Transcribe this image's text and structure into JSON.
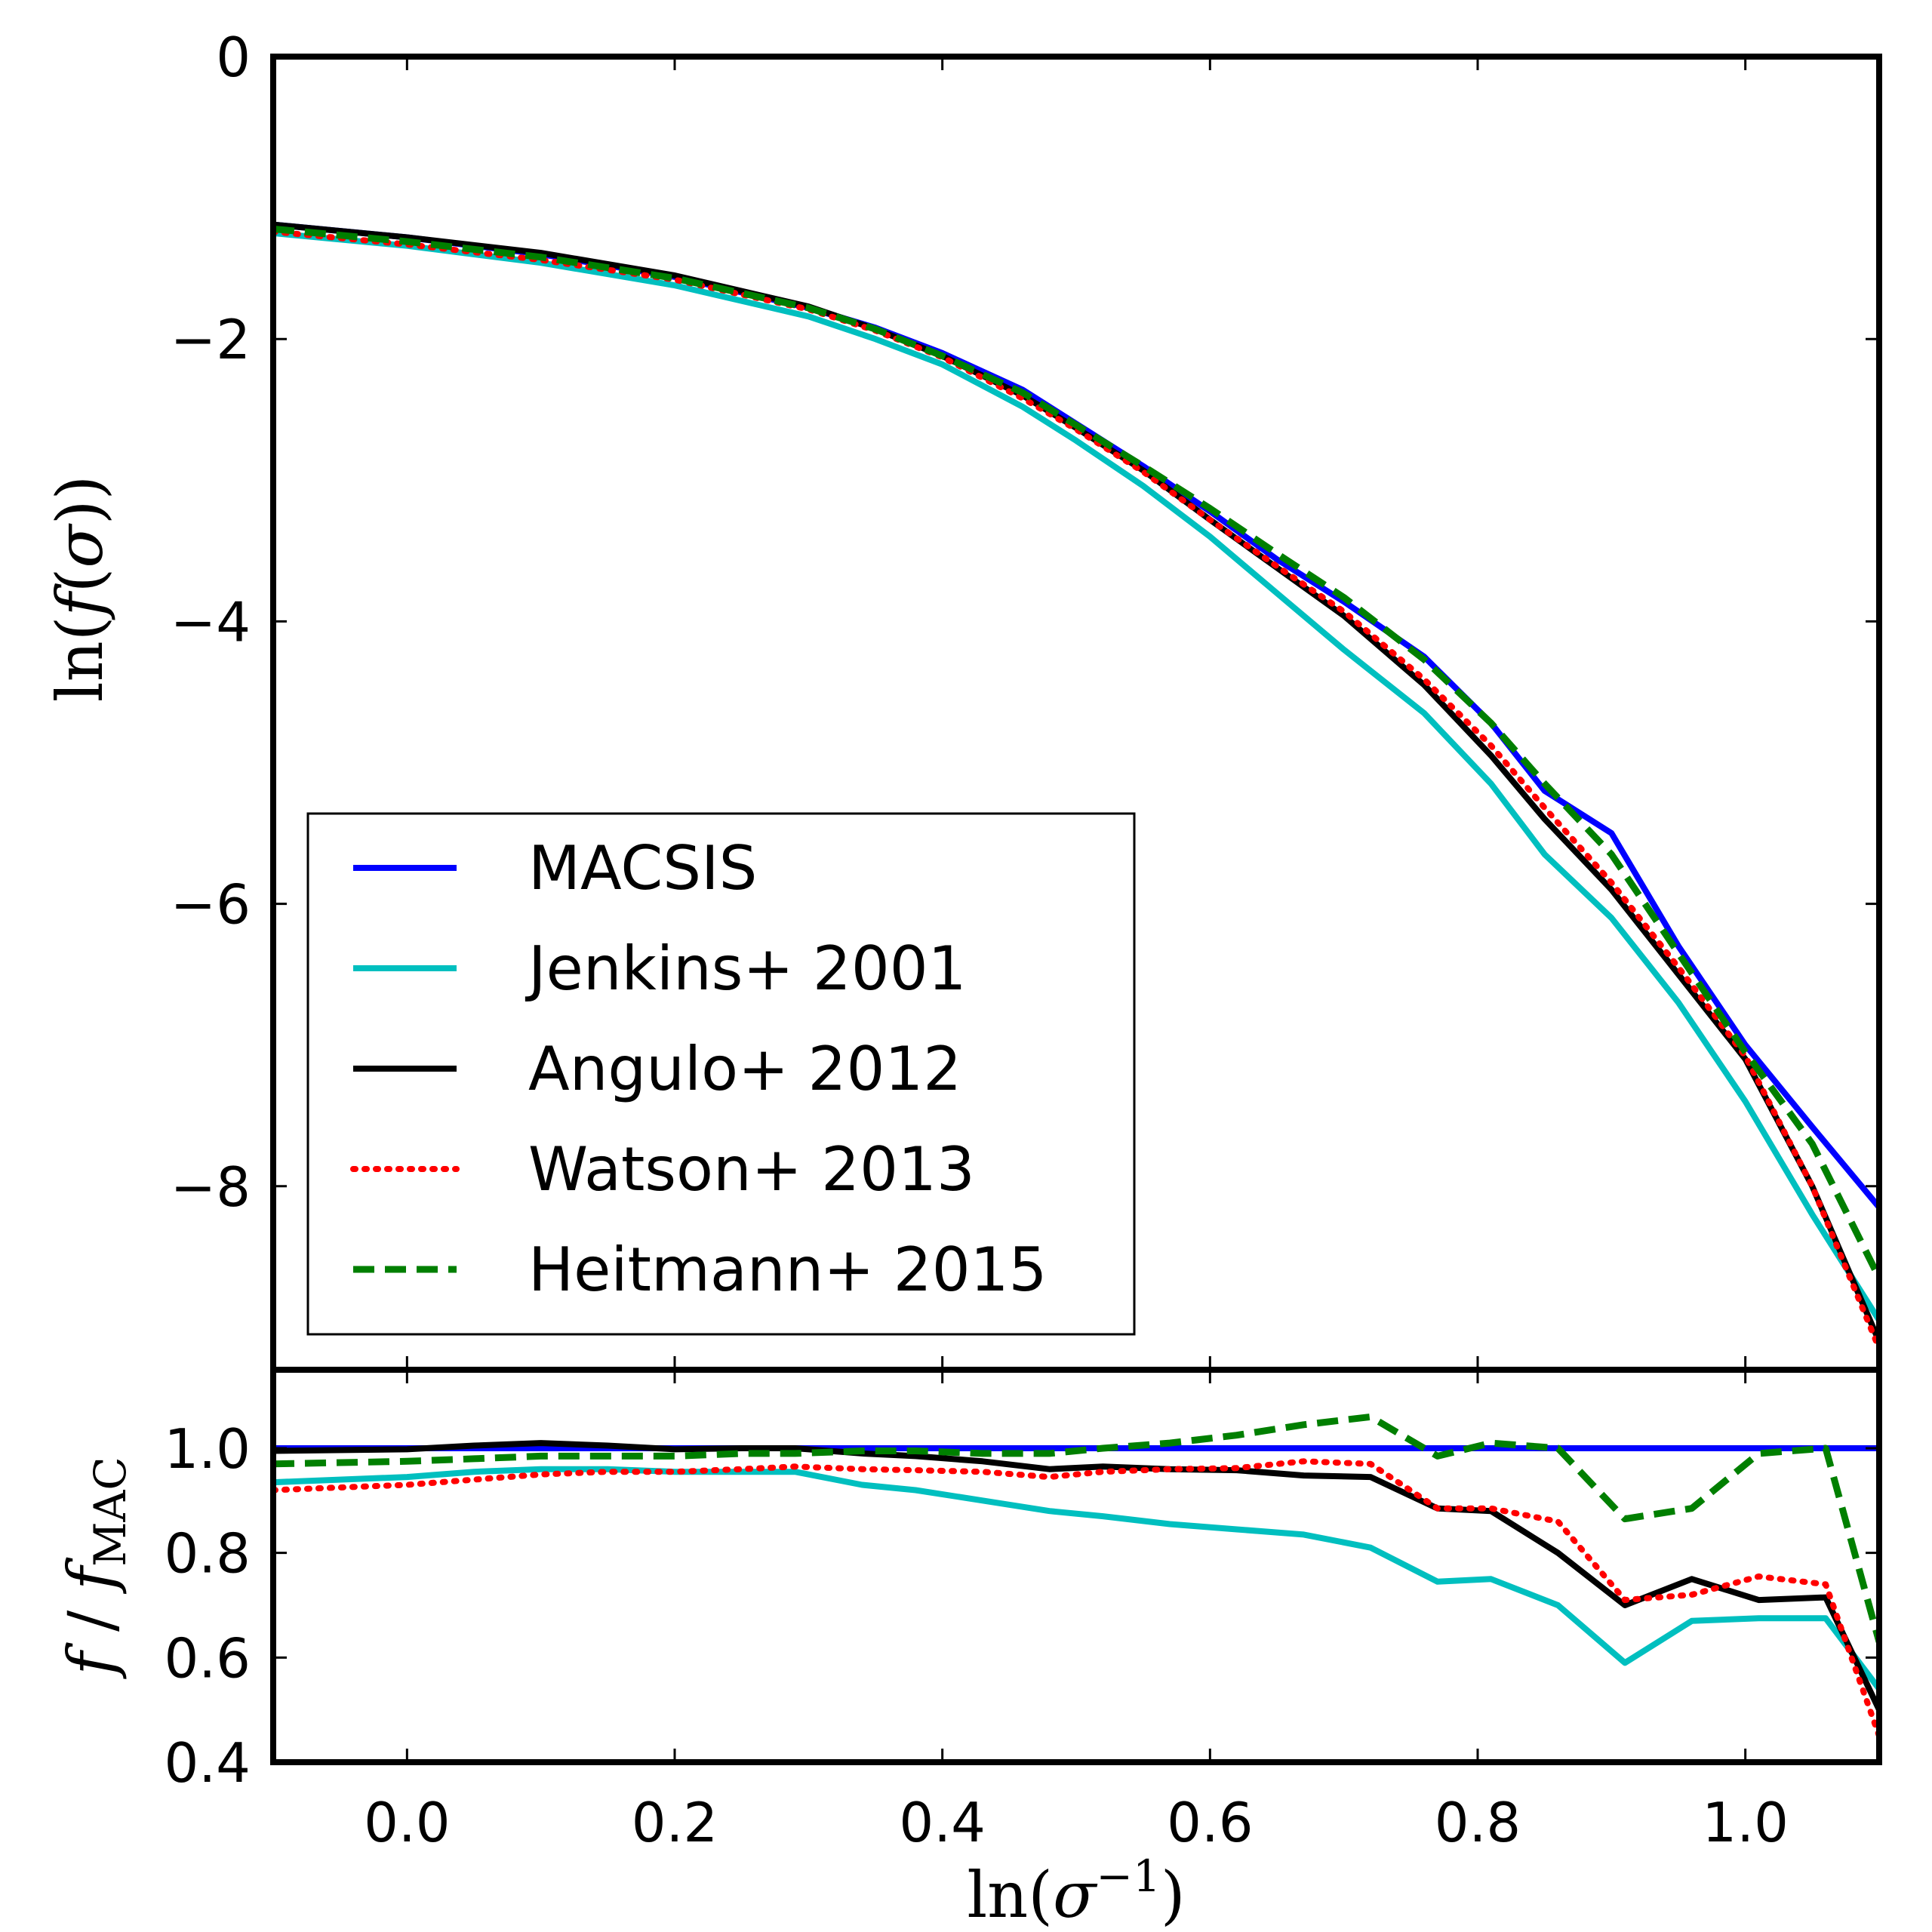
{
  "chart_data": [
    {
      "type": "line",
      "panel": "top",
      "xlabel": "",
      "ylabel": "ln(f(σ))",
      "xlim": [
        -0.1,
        1.1
      ],
      "ylim": [
        -9.3,
        0
      ],
      "yticks": [
        0,
        -2,
        -4,
        -6,
        -8
      ],
      "ytick_labels": [
        "0",
        "−2",
        "−4",
        "−6",
        "−8"
      ],
      "legend_position": "lower-left",
      "series": [
        {
          "name": "MACSIS",
          "color": "#0000ff",
          "style": "solid",
          "x": [
            -0.1,
            0.0,
            0.1,
            0.2,
            0.3,
            0.35,
            0.4,
            0.46,
            0.5,
            0.55,
            0.6,
            0.65,
            0.7,
            0.76,
            0.81,
            0.85,
            0.9,
            0.95,
            1.0,
            1.05,
            1.1
          ],
          "y": [
            -1.19,
            -1.28,
            -1.4,
            -1.56,
            -1.78,
            -1.92,
            -2.1,
            -2.36,
            -2.6,
            -2.9,
            -3.22,
            -3.56,
            -3.86,
            -4.25,
            -4.72,
            -5.2,
            -5.5,
            -6.3,
            -7.0,
            -7.58,
            -8.15
          ]
        },
        {
          "name": "Jenkins+ 2001",
          "color": "#00bfbf",
          "style": "solid",
          "x": [
            -0.1,
            0.0,
            0.1,
            0.2,
            0.3,
            0.35,
            0.4,
            0.46,
            0.5,
            0.55,
            0.6,
            0.65,
            0.7,
            0.76,
            0.81,
            0.85,
            0.9,
            0.95,
            1.0,
            1.05,
            1.1
          ],
          "y": [
            -1.25,
            -1.34,
            -1.46,
            -1.62,
            -1.84,
            -2.0,
            -2.18,
            -2.48,
            -2.72,
            -3.04,
            -3.4,
            -3.8,
            -4.2,
            -4.65,
            -5.15,
            -5.65,
            -6.1,
            -6.7,
            -7.4,
            -8.2,
            -8.95
          ]
        },
        {
          "name": "Angulo+ 2012",
          "color": "#000000",
          "style": "solid",
          "x": [
            -0.1,
            0.0,
            0.1,
            0.2,
            0.3,
            0.35,
            0.4,
            0.46,
            0.5,
            0.55,
            0.6,
            0.65,
            0.7,
            0.76,
            0.81,
            0.85,
            0.9,
            0.95,
            1.0,
            1.05,
            1.1
          ],
          "y": [
            -1.19,
            -1.28,
            -1.39,
            -1.55,
            -1.77,
            -1.93,
            -2.12,
            -2.4,
            -2.63,
            -2.93,
            -3.28,
            -3.62,
            -3.96,
            -4.45,
            -4.95,
            -5.4,
            -5.9,
            -6.5,
            -7.1,
            -8.0,
            -9.1
          ]
        },
        {
          "name": "Watson+ 2013",
          "color": "#ff0000",
          "style": "dotted",
          "x": [
            -0.1,
            0.0,
            0.1,
            0.2,
            0.3,
            0.35,
            0.4,
            0.46,
            0.5,
            0.55,
            0.6,
            0.65,
            0.7,
            0.76,
            0.81,
            0.85,
            0.9,
            0.95,
            1.0,
            1.05,
            1.1
          ],
          "y": [
            -1.24,
            -1.33,
            -1.44,
            -1.58,
            -1.79,
            -1.94,
            -2.13,
            -2.42,
            -2.64,
            -2.94,
            -3.28,
            -3.61,
            -3.93,
            -4.41,
            -4.88,
            -5.32,
            -5.85,
            -6.45,
            -7.08,
            -8.0,
            -9.15
          ]
        },
        {
          "name": "Heitmann+ 2015",
          "color": "#007f00",
          "style": "dashed",
          "x": [
            -0.1,
            0.0,
            0.1,
            0.2,
            0.3,
            0.35,
            0.4,
            0.46,
            0.5,
            0.55,
            0.6,
            0.65,
            0.7,
            0.76,
            0.81,
            0.85,
            0.9,
            0.95,
            1.0,
            1.05,
            1.1
          ],
          "y": [
            -1.22,
            -1.31,
            -1.42,
            -1.57,
            -1.78,
            -1.93,
            -2.12,
            -2.38,
            -2.61,
            -2.9,
            -3.2,
            -3.52,
            -3.83,
            -4.27,
            -4.72,
            -5.15,
            -5.65,
            -6.35,
            -7.05,
            -7.7,
            -8.65
          ]
        }
      ]
    },
    {
      "type": "line",
      "panel": "bottom",
      "xlabel": "ln(σ⁻¹)",
      "ylabel": "f / f_MAC",
      "xlim": [
        -0.1,
        1.1
      ],
      "ylim": [
        0.4,
        1.15
      ],
      "xticks": [
        0.0,
        0.2,
        0.4,
        0.6,
        0.8,
        1.0
      ],
      "xtick_labels": [
        "0.0",
        "0.2",
        "0.4",
        "0.6",
        "0.8",
        "1.0"
      ],
      "yticks": [
        0.4,
        0.6,
        0.8,
        1.0
      ],
      "ytick_labels": [
        "0.4",
        "0.6",
        "0.8",
        "1.0"
      ],
      "series": [
        {
          "name": "MACSIS",
          "color": "#0000ff",
          "style": "solid",
          "x": [
            -0.1,
            1.1
          ],
          "y": [
            1.0,
            1.0
          ]
        },
        {
          "name": "Jenkins+ 2001",
          "color": "#00bfbf",
          "style": "solid",
          "x": [
            -0.1,
            0.0,
            0.05,
            0.1,
            0.15,
            0.2,
            0.25,
            0.29,
            0.34,
            0.38,
            0.43,
            0.48,
            0.52,
            0.57,
            0.62,
            0.67,
            0.72,
            0.77,
            0.81,
            0.86,
            0.91,
            0.96,
            1.01,
            1.06,
            1.1
          ],
          "y": [
            0.935,
            0.945,
            0.955,
            0.96,
            0.96,
            0.955,
            0.955,
            0.955,
            0.93,
            0.92,
            0.9,
            0.88,
            0.87,
            0.855,
            0.845,
            0.835,
            0.81,
            0.745,
            0.75,
            0.7,
            0.59,
            0.67,
            0.675,
            0.675,
            0.54
          ]
        },
        {
          "name": "Angulo+ 2012",
          "color": "#000000",
          "style": "solid",
          "x": [
            -0.1,
            0.0,
            0.05,
            0.1,
            0.15,
            0.2,
            0.25,
            0.29,
            0.34,
            0.38,
            0.43,
            0.48,
            0.52,
            0.57,
            0.62,
            0.67,
            0.72,
            0.77,
            0.81,
            0.86,
            0.91,
            0.96,
            1.01,
            1.06,
            1.1
          ],
          "y": [
            0.995,
            0.998,
            1.005,
            1.01,
            1.005,
            0.998,
            1.0,
            1.0,
            0.99,
            0.985,
            0.975,
            0.96,
            0.965,
            0.96,
            0.958,
            0.948,
            0.945,
            0.885,
            0.88,
            0.8,
            0.7,
            0.75,
            0.71,
            0.715,
            0.5
          ]
        },
        {
          "name": "Watson+ 2013",
          "color": "#ff0000",
          "style": "dotted",
          "x": [
            -0.1,
            0.0,
            0.05,
            0.1,
            0.15,
            0.2,
            0.25,
            0.29,
            0.34,
            0.38,
            0.43,
            0.48,
            0.52,
            0.57,
            0.62,
            0.67,
            0.72,
            0.77,
            0.81,
            0.86,
            0.91,
            0.96,
            1.01,
            1.06,
            1.1
          ],
          "y": [
            0.92,
            0.93,
            0.94,
            0.95,
            0.955,
            0.955,
            0.96,
            0.965,
            0.96,
            0.958,
            0.955,
            0.945,
            0.955,
            0.96,
            0.962,
            0.975,
            0.97,
            0.885,
            0.885,
            0.86,
            0.71,
            0.72,
            0.755,
            0.74,
            0.45
          ]
        },
        {
          "name": "Heitmann+ 2015",
          "color": "#007f00",
          "style": "dashed",
          "x": [
            -0.1,
            0.0,
            0.05,
            0.1,
            0.15,
            0.2,
            0.25,
            0.29,
            0.34,
            0.38,
            0.43,
            0.48,
            0.52,
            0.57,
            0.62,
            0.67,
            0.72,
            0.77,
            0.81,
            0.86,
            0.91,
            0.96,
            1.01,
            1.06,
            1.1
          ],
          "y": [
            0.97,
            0.975,
            0.98,
            0.985,
            0.985,
            0.985,
            0.99,
            0.99,
            0.995,
            0.995,
            0.99,
            0.99,
            1.0,
            1.01,
            1.025,
            1.045,
            1.06,
            0.985,
            1.01,
            1.0,
            0.865,
            0.885,
            0.99,
            1.0,
            0.63
          ]
        }
      ]
    }
  ],
  "legend": {
    "entries": [
      "MACSIS",
      "Jenkins+ 2001",
      "Angulo+ 2012",
      "Watson+ 2013",
      "Heitmann+ 2015"
    ]
  },
  "labels": {
    "top_ylabel_main": "ln(",
    "top_ylabel_f": "f",
    "top_ylabel_paren": "(",
    "top_ylabel_sigma": "σ",
    "top_ylabel_close": "))",
    "bottom_ylabel_f": "f",
    "bottom_ylabel_slash": " / ",
    "bottom_ylabel_f2": "f",
    "bottom_ylabel_sub": "MAC",
    "xlabel_main": "ln(",
    "xlabel_sigma": "σ",
    "xlabel_sup": "−1",
    "xlabel_close": ")"
  }
}
